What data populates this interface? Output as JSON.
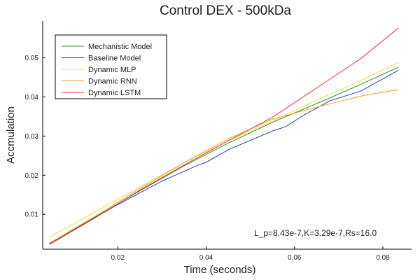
{
  "chart_data": {
    "type": "line",
    "title": "Control DEX - 500kDa",
    "xlabel": "Time (seconds)",
    "ylabel": "Accmulation",
    "xlim": [
      0.003,
      0.0865
    ],
    "ylim": [
      0.0011,
      0.0594
    ],
    "xticks": [
      0.02,
      0.04,
      0.06,
      0.08
    ],
    "xtick_labels": [
      "0.02",
      "0.04",
      "0.06",
      "0.08"
    ],
    "yticks": [
      0.01,
      0.02,
      0.03,
      0.04,
      0.05
    ],
    "ytick_labels": [
      "0.01",
      "0.02",
      "0.03",
      "0.04",
      "0.05"
    ],
    "grid": false,
    "legend_position": "top-left",
    "annotation": "L_p=8.43e-7,K=3.29e-7,Rs=16.0",
    "series": [
      {
        "name": "Mechanistic Model",
        "color": "#2e8b2e",
        "x": [
          0.0045,
          0.015,
          0.025,
          0.035,
          0.045,
          0.055,
          0.065,
          0.075,
          0.0835
        ],
        "y": [
          0.0026,
          0.0094,
          0.016,
          0.0224,
          0.0282,
          0.0335,
          0.0383,
          0.0432,
          0.0476
        ]
      },
      {
        "name": "Baseline Model",
        "color": "#1f3fbf",
        "x": [
          0.0045,
          0.01,
          0.02,
          0.03,
          0.038,
          0.04,
          0.045,
          0.05,
          0.055,
          0.058,
          0.062,
          0.068,
          0.075,
          0.0835
        ],
        "y": [
          0.0024,
          0.006,
          0.0125,
          0.0185,
          0.0225,
          0.0233,
          0.0265,
          0.0289,
          0.0313,
          0.0324,
          0.0353,
          0.039,
          0.0415,
          0.0468
        ]
      },
      {
        "name": "Dynamic MLP",
        "color": "#e8e040",
        "x": [
          0.0045,
          0.015,
          0.025,
          0.035,
          0.045,
          0.055,
          0.065,
          0.075,
          0.0835
        ],
        "y": [
          0.0042,
          0.0107,
          0.017,
          0.0232,
          0.0288,
          0.0338,
          0.0392,
          0.0442,
          0.0488
        ]
      },
      {
        "name": "Dynamic RNN",
        "color": "#f0a020",
        "x": [
          0.0045,
          0.015,
          0.025,
          0.035,
          0.045,
          0.055,
          0.065,
          0.07,
          0.075,
          0.08,
          0.0835
        ],
        "y": [
          0.0026,
          0.0096,
          0.0166,
          0.0232,
          0.0293,
          0.0343,
          0.0374,
          0.0388,
          0.0402,
          0.0412,
          0.0418
        ]
      },
      {
        "name": "Dynamic LSTM",
        "color": "#ee3333",
        "x": [
          0.0045,
          0.015,
          0.025,
          0.035,
          0.045,
          0.055,
          0.065,
          0.075,
          0.0835
        ],
        "y": [
          0.0023,
          0.0092,
          0.0162,
          0.0226,
          0.0288,
          0.0348,
          0.0423,
          0.0498,
          0.0576
        ]
      }
    ]
  }
}
